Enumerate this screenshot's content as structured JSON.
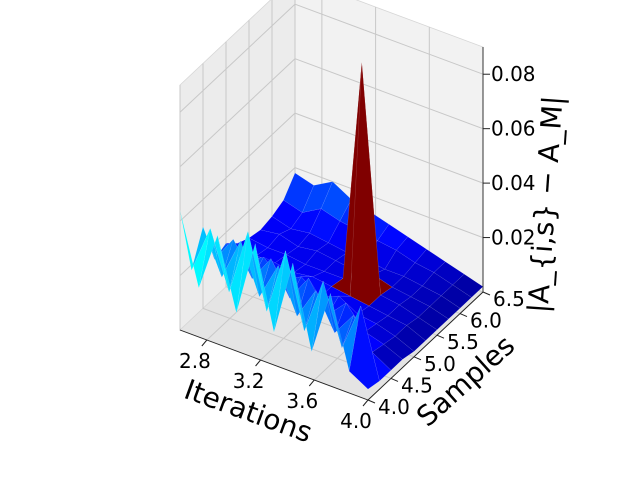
{
  "chart_data": {
    "type": "surface3d",
    "title": "",
    "xlabel": "Iterations",
    "ylabel": "Samples",
    "zlabel": "|A_{i,s} − A_M|",
    "xlim": [
      2.6,
      4.0
    ],
    "ylim": [
      4.0,
      6.5
    ],
    "zlim": [
      0.0,
      0.09
    ],
    "xticks": [
      {
        "value": 2.8,
        "label": "2.8"
      },
      {
        "value": 3.2,
        "label": "3.2"
      },
      {
        "value": 3.6,
        "label": "3.6"
      },
      {
        "value": 4.0,
        "label": "4.0"
      }
    ],
    "yticks": [
      {
        "value": 4.0,
        "label": "4.0"
      },
      {
        "value": 4.5,
        "label": "4.5"
      },
      {
        "value": 5.0,
        "label": "5.0"
      },
      {
        "value": 5.5,
        "label": "5.5"
      },
      {
        "value": 6.0,
        "label": "6.0"
      },
      {
        "value": 6.5,
        "label": "6.5"
      }
    ],
    "zticks": [
      {
        "value": 0.02,
        "label": "0.02"
      },
      {
        "value": 0.04,
        "label": "0.04"
      },
      {
        "value": 0.06,
        "label": "0.06"
      },
      {
        "value": 0.08,
        "label": "0.08"
      }
    ],
    "colormap": "jet",
    "grid": true,
    "x": [
      2.6,
      2.74,
      2.88,
      3.02,
      3.16,
      3.3,
      3.44,
      3.58,
      3.72,
      3.86,
      4.0
    ],
    "y": [
      4.0,
      4.25,
      4.5,
      4.75,
      5.0,
      5.25,
      5.5,
      5.75,
      6.0,
      6.25,
      6.5
    ],
    "z": [
      [
        0.044,
        0.018,
        0.04,
        0.014,
        0.042,
        0.012,
        0.04,
        0.01,
        0.034,
        0.008,
        0.004
      ],
      [
        0.018,
        0.036,
        0.015,
        0.04,
        0.013,
        0.038,
        0.011,
        0.032,
        0.01,
        0.028,
        0.003
      ],
      [
        0.03,
        0.014,
        0.03,
        0.012,
        0.026,
        0.01,
        0.022,
        0.009,
        0.018,
        0.007,
        0.003
      ],
      [
        0.014,
        0.024,
        0.012,
        0.022,
        0.01,
        0.02,
        0.009,
        0.016,
        0.008,
        0.006,
        0.003
      ],
      [
        0.016,
        0.012,
        0.016,
        0.01,
        0.014,
        0.009,
        0.012,
        0.008,
        0.007,
        0.005,
        0.002
      ],
      [
        0.012,
        0.01,
        0.01,
        0.009,
        0.01,
        0.009,
        0.008,
        0.007,
        0.006,
        0.005,
        0.002
      ],
      [
        0.01,
        0.009,
        0.009,
        0.008,
        0.008,
        0.008,
        0.09,
        0.007,
        0.006,
        0.004,
        0.002
      ],
      [
        0.009,
        0.01,
        0.008,
        0.009,
        0.008,
        0.007,
        0.008,
        0.006,
        0.005,
        0.004,
        0.002
      ],
      [
        0.01,
        0.008,
        0.009,
        0.008,
        0.007,
        0.007,
        0.006,
        0.006,
        0.005,
        0.004,
        0.002
      ],
      [
        0.012,
        0.01,
        0.014,
        0.012,
        0.011,
        0.01,
        0.009,
        0.007,
        0.006,
        0.004,
        0.002
      ],
      [
        0.018,
        0.016,
        0.02,
        0.016,
        0.014,
        0.012,
        0.01,
        0.008,
        0.006,
        0.004,
        0.002
      ]
    ]
  }
}
